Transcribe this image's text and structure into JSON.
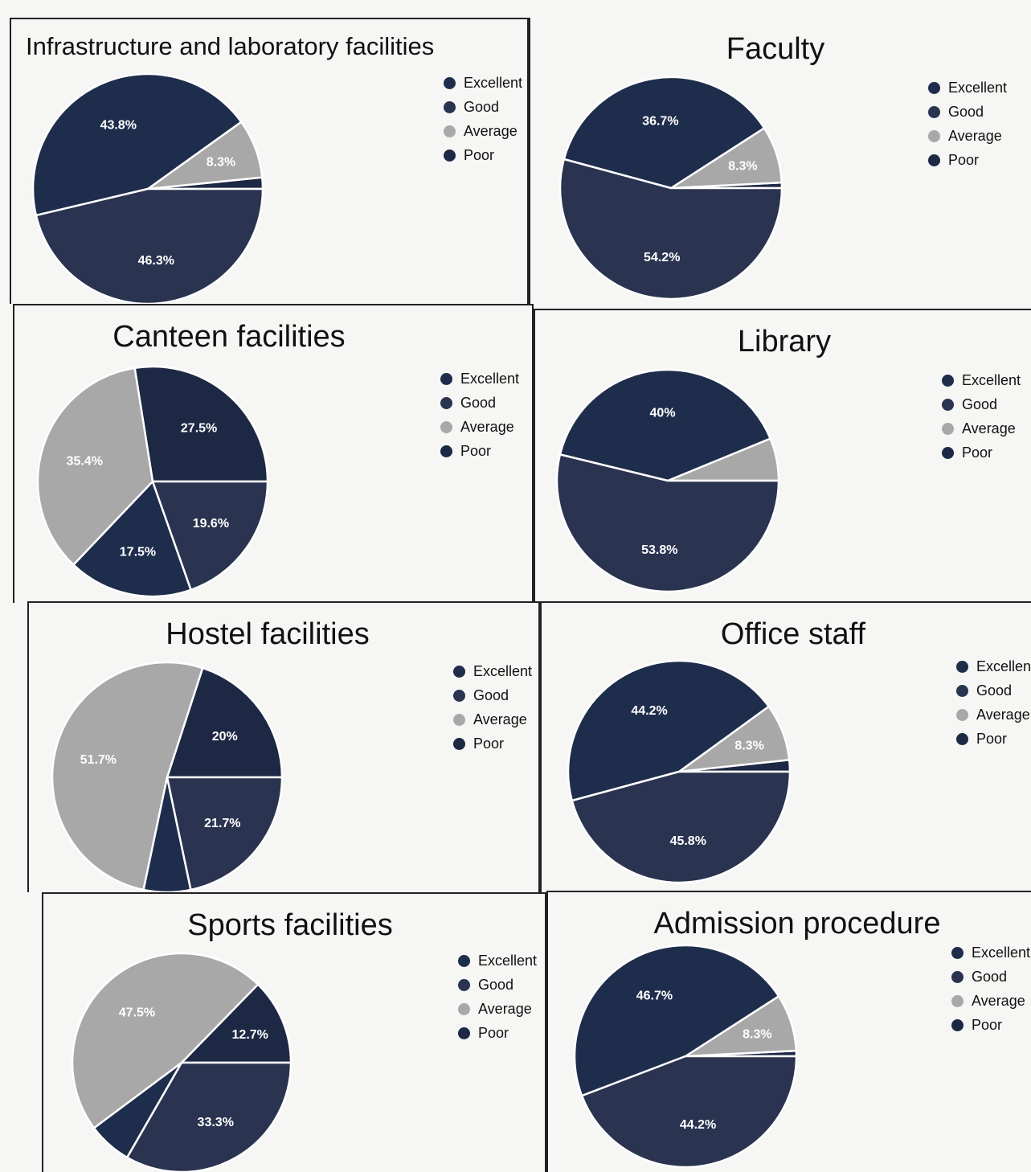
{
  "legend_labels": [
    "Excellent",
    "Good",
    "Average",
    "Poor"
  ],
  "colors": {
    "excellent": "#1f2d4c",
    "good": "#2a3350",
    "average": "#a8a8a8",
    "poor": "#1d2844",
    "separator": "#ffffff"
  },
  "chart_data": [
    {
      "type": "pie",
      "title": "Infrastructure and laboratory facilities",
      "categories": [
        "Excellent",
        "Good",
        "Average",
        "Poor"
      ],
      "values": [
        43.8,
        46.3,
        8.3,
        1.6
      ],
      "labels": [
        "43.8%",
        "46.3%",
        "8.3%",
        ""
      ]
    },
    {
      "type": "pie",
      "title": "Faculty",
      "categories": [
        "Excellent",
        "Good",
        "Average",
        "Poor"
      ],
      "values": [
        36.7,
        54.2,
        8.3,
        0.8
      ],
      "labels": [
        "36.7%",
        "54.2%",
        "8.3%",
        ""
      ]
    },
    {
      "type": "pie",
      "title": "Canteen facilities",
      "categories": [
        "Excellent",
        "Good",
        "Average",
        "Poor"
      ],
      "values": [
        17.5,
        19.6,
        35.4,
        27.5
      ],
      "labels": [
        "17.5%",
        "19.6%",
        "35.4%",
        "27.5%"
      ]
    },
    {
      "type": "pie",
      "title": "Library",
      "categories": [
        "Excellent",
        "Good",
        "Average",
        "Poor"
      ],
      "values": [
        40,
        53.8,
        6.2,
        0
      ],
      "labels": [
        "40%",
        "53.8%",
        "",
        ""
      ]
    },
    {
      "type": "pie",
      "title": "Hostel facilities",
      "categories": [
        "Excellent",
        "Good",
        "Average",
        "Poor"
      ],
      "values": [
        6.6,
        21.7,
        51.7,
        20
      ],
      "labels": [
        "",
        "21.7%",
        "51.7%",
        "20%"
      ]
    },
    {
      "type": "pie",
      "title": "Office staff",
      "categories": [
        "Excellent",
        "Good",
        "Average",
        "Poor"
      ],
      "values": [
        44.2,
        45.8,
        8.3,
        1.7
      ],
      "labels": [
        "44.2%",
        "45.8%",
        "8.3%",
        ""
      ]
    },
    {
      "type": "pie",
      "title": "Sports facilities",
      "categories": [
        "Excellent",
        "Good",
        "Average",
        "Poor"
      ],
      "values": [
        6.5,
        33.3,
        47.5,
        12.7
      ],
      "labels": [
        "",
        "33.3%",
        "47.5%",
        "12.7%"
      ]
    },
    {
      "type": "pie",
      "title": "Admission procedure",
      "categories": [
        "Excellent",
        "Good",
        "Average",
        "Poor"
      ],
      "values": [
        46.7,
        44.2,
        8.3,
        0.8
      ],
      "labels": [
        "46.7%",
        "44.2%",
        "8.3%",
        ""
      ]
    }
  ]
}
